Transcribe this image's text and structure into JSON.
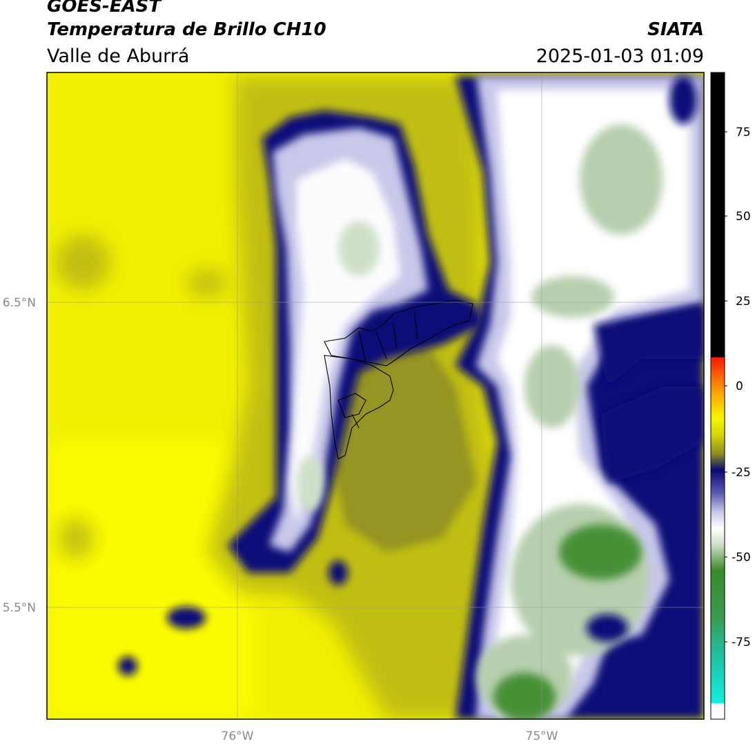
{
  "header": {
    "satellite": "GOES-EAST",
    "product": "Temperatura de Brillo CH10",
    "region": "Valle de Aburrá",
    "agency": "SIATA",
    "datetime": "2025-01-03 01:09"
  },
  "map": {
    "lat_labels": [
      "6.5°N",
      "5.5°N"
    ],
    "lon_labels": [
      "76°W",
      "75°W"
    ]
  },
  "colorbar": {
    "tick_labels": [
      "75",
      "50",
      "25",
      "0",
      "-25",
      "-50",
      "-75"
    ],
    "colors": {
      "black": "#000000",
      "red": "#ff1a00",
      "orange": "#ff9a00",
      "yellow": "#f6f600",
      "olive": "#8c8c22",
      "navy": "#0a0a78",
      "lavender": "#c8c8ea",
      "white": "#ffffff",
      "green": "#3a8a2a",
      "cyan": "#10e0d0"
    }
  }
}
